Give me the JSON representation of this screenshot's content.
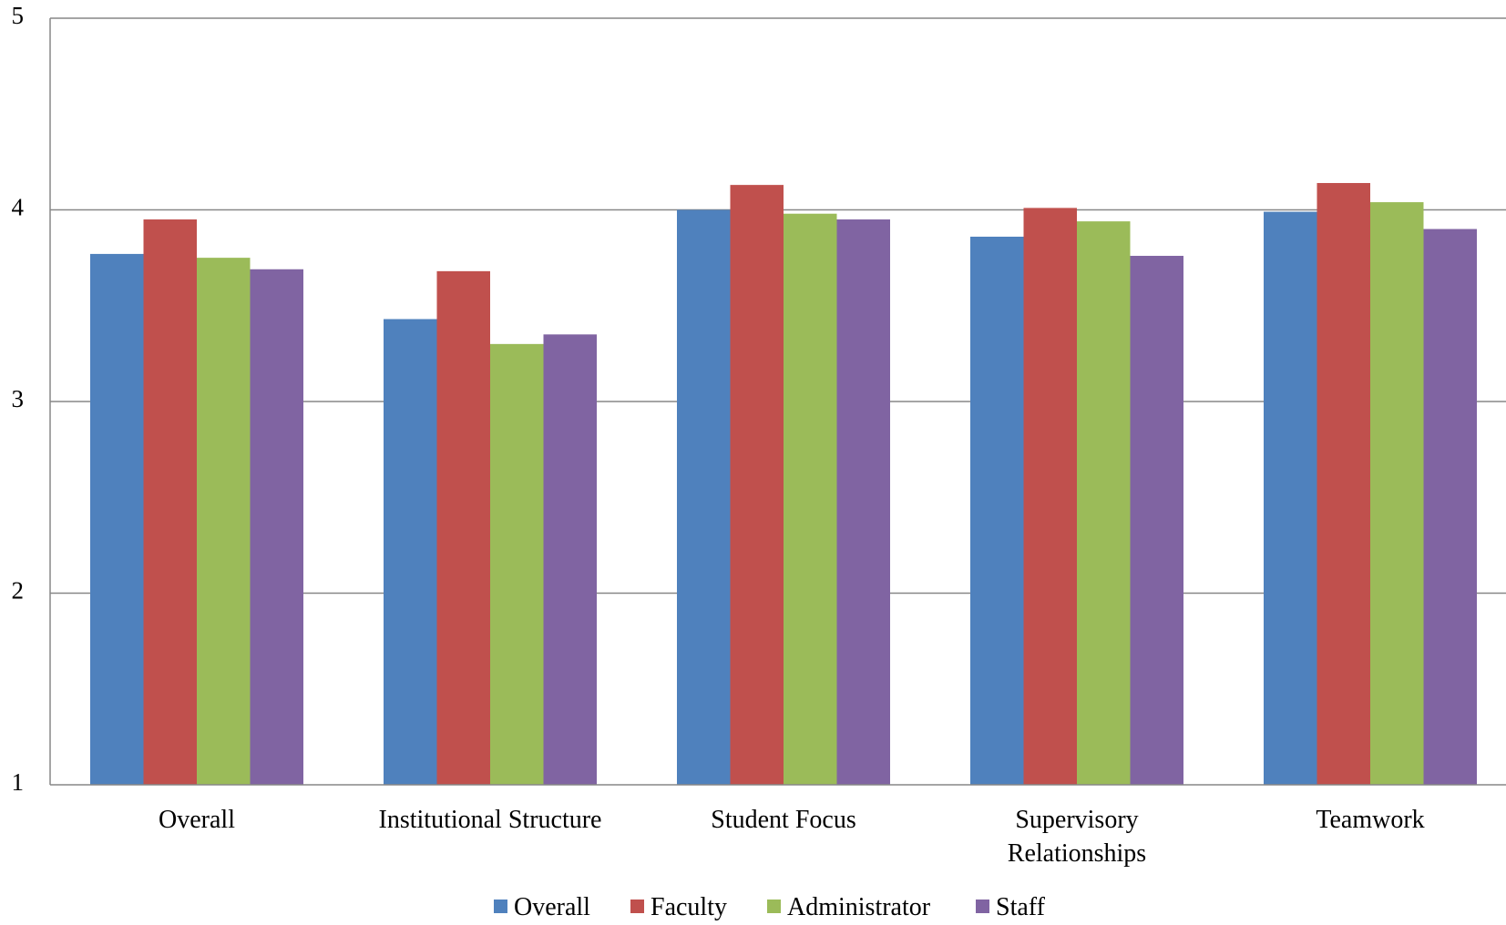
{
  "chart_data": {
    "type": "bar",
    "title": "",
    "xlabel": "",
    "ylabel": "",
    "ylim": [
      1,
      5
    ],
    "yticks": [
      "1",
      "2",
      "3",
      "4",
      "5"
    ],
    "grid": true,
    "legend_position": "bottom",
    "categories": [
      "Overall",
      "Institutional Structure",
      "Student Focus",
      "Supervisory Relationships",
      "Teamwork"
    ],
    "category_label_lines": [
      [
        "Overall"
      ],
      [
        "Institutional Structure"
      ],
      [
        "Student Focus"
      ],
      [
        "Supervisory",
        "Relationships"
      ],
      [
        "Teamwork"
      ]
    ],
    "series": [
      {
        "name": "Overall",
        "color": "#4F81BD",
        "values": [
          3.77,
          3.43,
          4.0,
          3.86,
          3.99
        ]
      },
      {
        "name": "Faculty",
        "color": "#C0504D",
        "values": [
          3.95,
          3.68,
          4.13,
          4.01,
          4.14
        ]
      },
      {
        "name": "Administrator",
        "color": "#9BBB59",
        "values": [
          3.75,
          3.3,
          3.98,
          3.94,
          4.04
        ]
      },
      {
        "name": "Staff",
        "color": "#8064A2",
        "values": [
          3.69,
          3.35,
          3.95,
          3.76,
          3.9
        ]
      }
    ]
  }
}
